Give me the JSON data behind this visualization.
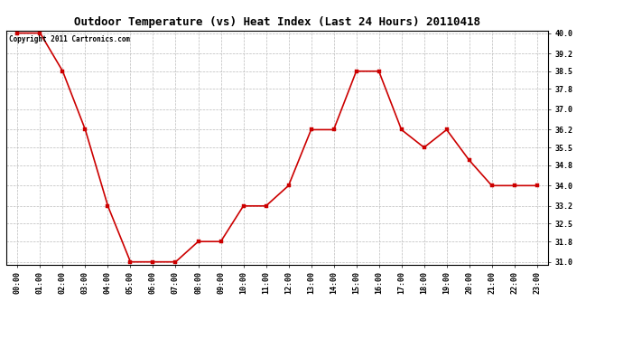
{
  "title": "Outdoor Temperature (vs) Heat Index (Last 24 Hours) 20110418",
  "copyright_text": "Copyright 2011 Cartronics.com",
  "x_labels": [
    "00:00",
    "01:00",
    "02:00",
    "03:00",
    "04:00",
    "05:00",
    "06:00",
    "07:00",
    "08:00",
    "09:00",
    "10:00",
    "11:00",
    "12:00",
    "13:00",
    "14:00",
    "15:00",
    "16:00",
    "17:00",
    "18:00",
    "19:00",
    "20:00",
    "21:00",
    "22:00",
    "23:00"
  ],
  "y_values": [
    40.0,
    40.0,
    38.5,
    36.2,
    33.2,
    31.0,
    31.0,
    31.0,
    31.8,
    31.8,
    33.2,
    33.2,
    34.0,
    36.2,
    36.2,
    38.5,
    38.5,
    36.2,
    35.5,
    36.2,
    35.0,
    34.0,
    34.0,
    34.0
  ],
  "line_color": "#cc0000",
  "marker_color": "#cc0000",
  "marker_size": 2.5,
  "line_width": 1.2,
  "y_min": 31.0,
  "y_max": 40.0,
  "y_ticks": [
    31.0,
    31.8,
    32.5,
    33.2,
    34.0,
    34.8,
    35.5,
    36.2,
    37.0,
    37.8,
    38.5,
    39.2,
    40.0
  ],
  "background_color": "#ffffff",
  "plot_bg_color": "#ffffff",
  "grid_color": "#bbbbbb",
  "title_fontsize": 9,
  "tick_fontsize": 6,
  "copyright_fontsize": 5.5
}
